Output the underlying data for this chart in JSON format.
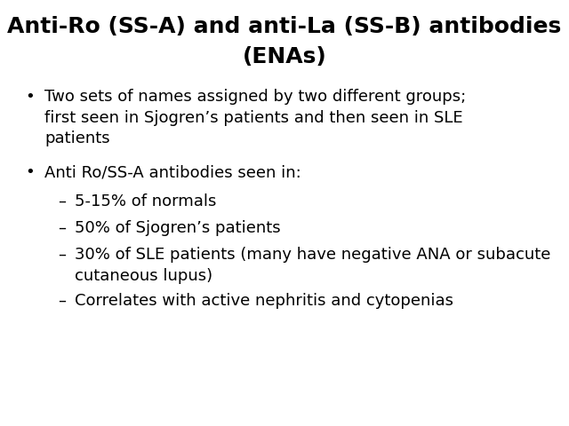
{
  "title_line1": "Anti-Ro (SS-A) and anti-La (SS-B) antibodies",
  "title_line2": "(ENAs)",
  "background_color": "#ffffff",
  "title_fontsize": 18,
  "title_color": "#000000",
  "title_fontweight": "bold",
  "body_fontsize": 13,
  "body_color": "#000000",
  "font_family": "DejaVu Sans",
  "bullet_symbol": "•",
  "sub_bullet_symbol": "–",
  "items": [
    {
      "level": 1,
      "text": "Two sets of names assigned by two different groups;\nfirst seen in Sjogren’s patients and then seen in SLE\npatients"
    },
    {
      "level": 1,
      "text": "Anti Ro/SS-A antibodies seen in:"
    },
    {
      "level": 2,
      "text": "5-15% of normals"
    },
    {
      "level": 2,
      "text": "50% of Sjogren’s patients"
    },
    {
      "level": 2,
      "text": "30% of SLE patients (many have negative ANA or subacute\ncutaneous lupus)"
    },
    {
      "level": 2,
      "text": "Correlates with active nephritis and cytopenias"
    }
  ]
}
